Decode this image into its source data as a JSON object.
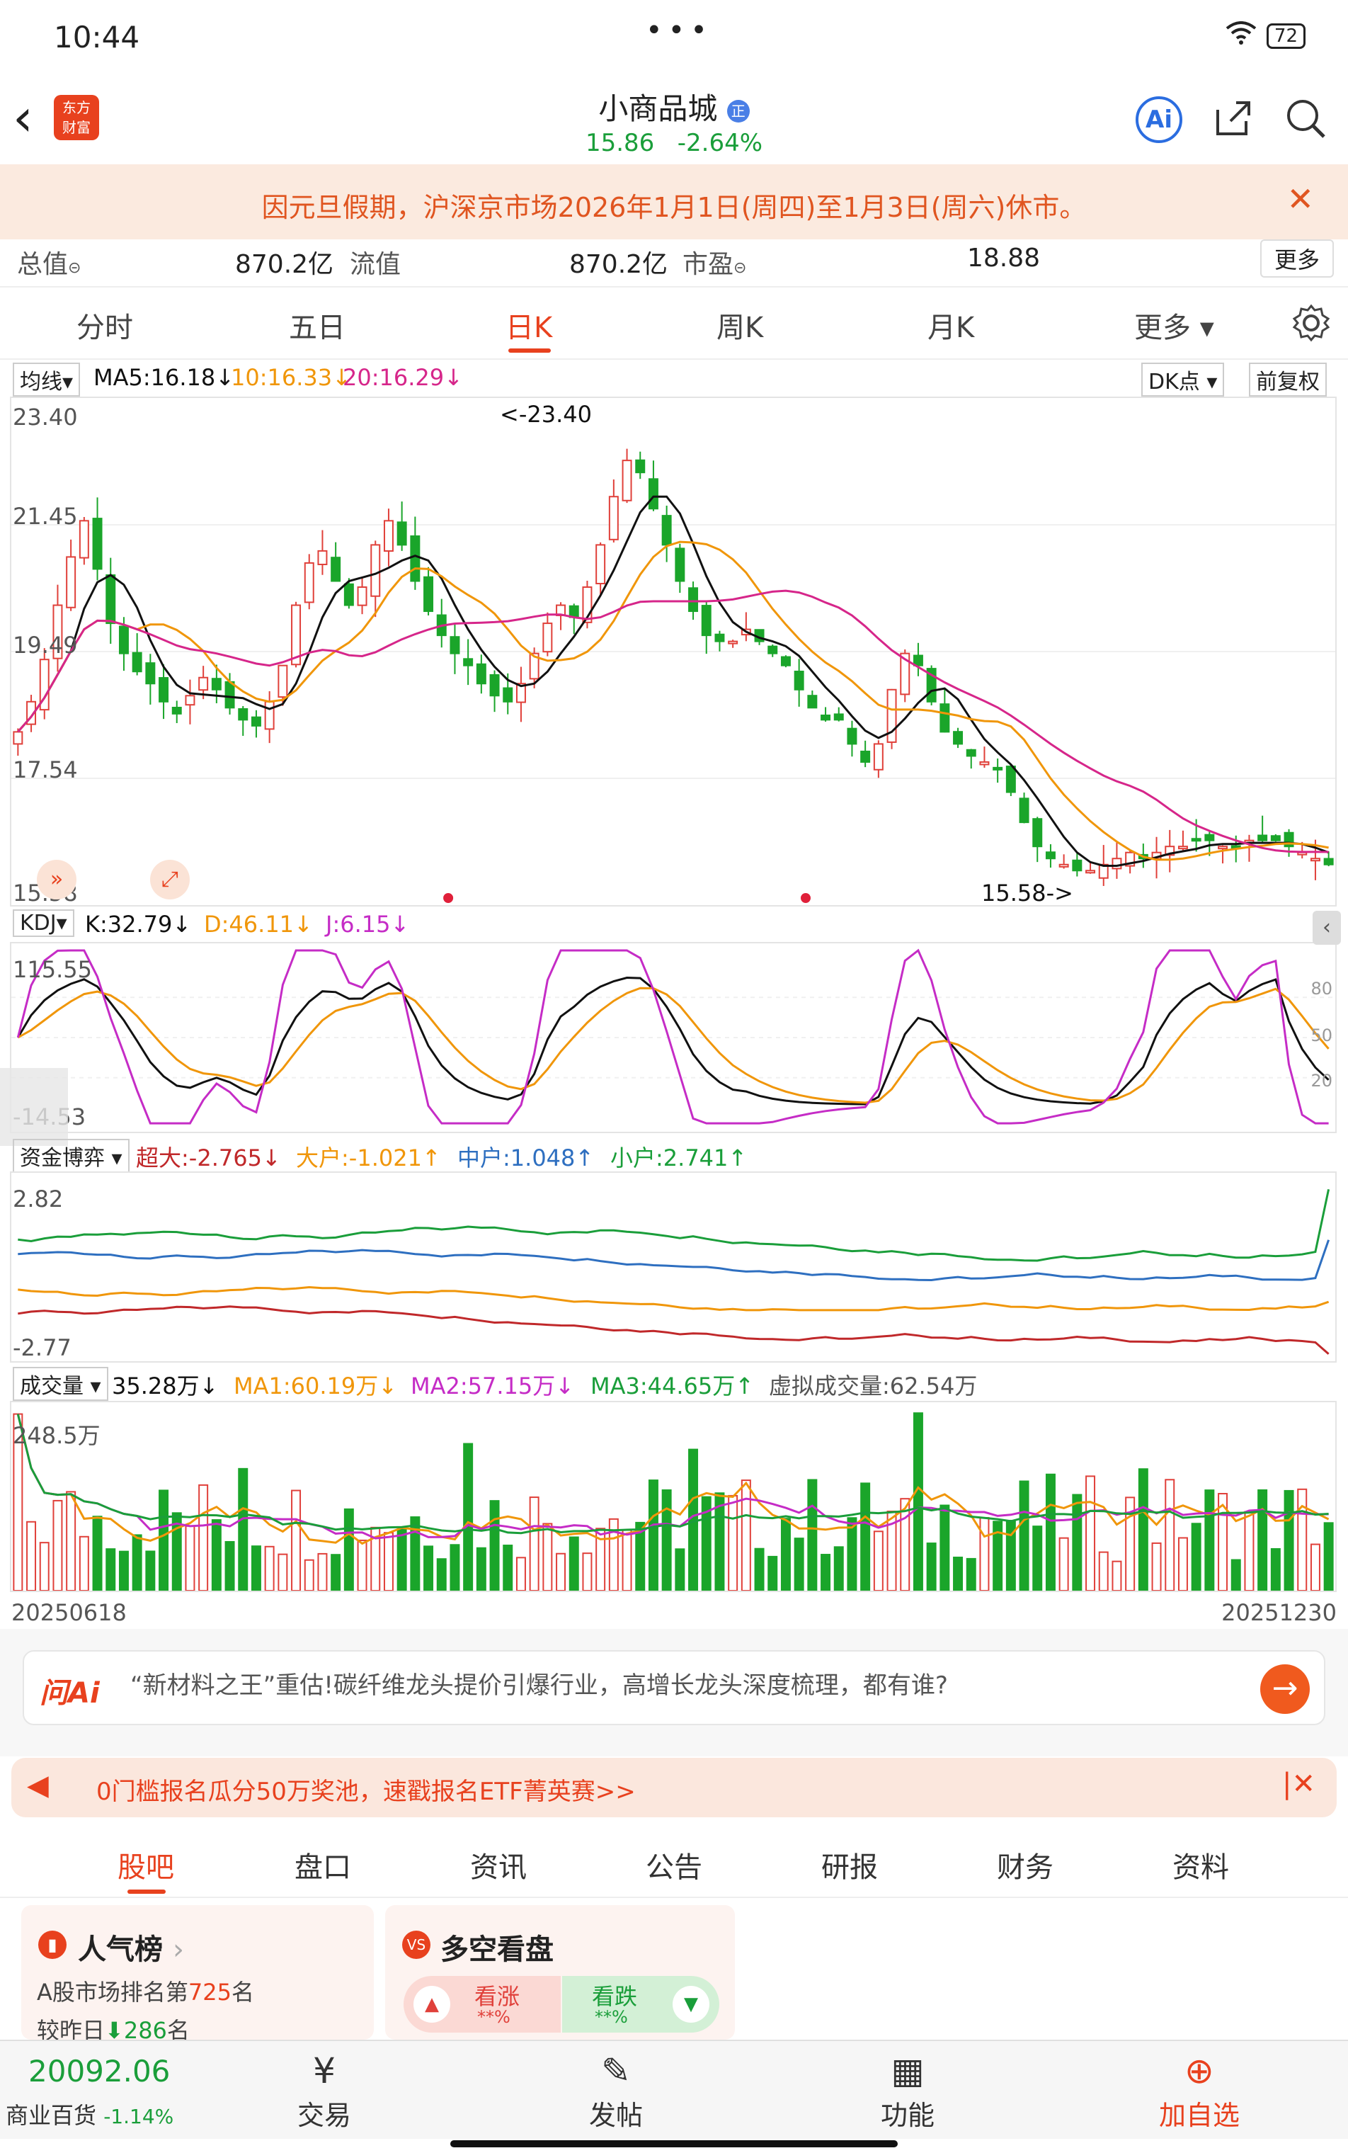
{
  "status": {
    "time": "10:44",
    "battery": "72"
  },
  "header": {
    "stock_name": "小商品城",
    "badge": "正",
    "price": "15.86",
    "change": "-2.64%"
  },
  "notice": {
    "text": "因元旦假期，沪深京市场2026年1月1日(周四)至1月3日(周六)休市。"
  },
  "metrics": {
    "total_label": "总值",
    "total_value": "870.2亿",
    "float_label": "流值",
    "float_value": "870.2亿",
    "pe_label": "市盈",
    "pe_value": "18.88",
    "more": "更多"
  },
  "tabs": [
    "分时",
    "五日",
    "日K",
    "周K",
    "月K",
    "更多"
  ],
  "main_chart": {
    "indicator": "均线",
    "ma5": "MA5:16.18",
    "ma10": "10:16.33",
    "ma20": "20:16.29",
    "dk": "DK点",
    "adjust": "前复权",
    "y_labels": [
      "23.40",
      "21.45",
      "19.49",
      "17.54",
      "15.58"
    ],
    "high_label": "<-23.40",
    "low_label": "15.58->"
  },
  "kdj": {
    "name": "KDJ",
    "k": "K:32.79",
    "d": "D:46.11",
    "j": "J:6.15",
    "y_top": "115.55",
    "y_bottom": "-14.53",
    "right_ticks": [
      "80",
      "50",
      "20"
    ]
  },
  "capital": {
    "name": "资金博弈",
    "super": "超大:-2.765",
    "large": "大户:-1.021",
    "medium": "中户:1.048",
    "small": "小户:2.741",
    "y_top": "2.82",
    "y_bottom": "-2.77"
  },
  "volume": {
    "name": "成交量",
    "value": "35.28万",
    "ma1": "MA1:60.19万",
    "ma2": "MA2:57.15万",
    "ma3": "MA3:44.65万",
    "virtual": "虚拟成交量:62.54万",
    "y_top": "248.5万",
    "date_start": "20250618",
    "date_end": "20251230"
  },
  "chart_data": {
    "type": "candlestick",
    "start_date": "20250618",
    "end_date": "20251230",
    "ylim": [
      15.58,
      23.4
    ],
    "high": 23.4,
    "low": 15.58,
    "close": [
      18.1,
      18.6,
      19.3,
      20.2,
      21.0,
      21.6,
      20.8,
      19.9,
      19.4,
      19.1,
      18.9,
      18.6,
      18.4,
      18.7,
      19.0,
      18.8,
      18.5,
      18.3,
      18.2,
      18.6,
      19.2,
      20.2,
      20.9,
      21.1,
      20.6,
      20.2,
      20.5,
      21.2,
      21.6,
      21.2,
      20.6,
      20.1,
      19.7,
      19.4,
      19.2,
      18.9,
      18.7,
      18.6,
      18.9,
      19.4,
      19.9,
      20.2,
      20.0,
      20.5,
      21.2,
      22.0,
      22.6,
      22.4,
      21.8,
      21.2,
      20.6,
      20.1,
      19.7,
      19.6,
      19.6,
      19.8,
      19.6,
      19.4,
      19.2,
      18.8,
      18.5,
      18.3,
      18.3,
      17.9,
      17.6,
      17.9,
      18.8,
      19.4,
      19.2,
      18.6,
      18.1,
      17.9,
      17.7,
      17.6,
      17.5,
      17.1,
      16.6,
      16.2,
      16.0,
      15.9,
      15.8,
      15.8,
      15.9,
      16.0,
      16.1,
      16.0,
      16.1,
      16.2,
      16.2,
      16.3,
      16.3,
      16.2,
      16.2,
      16.3,
      16.3,
      16.3,
      16.2,
      16.1,
      16.0,
      15.9
    ]
  },
  "promo": {
    "brand": "问Ai",
    "text": "“新材料之王”重估!碳纤维龙头提价引爆行业，高增长龙头深度梳理，都有谁?"
  },
  "promo2": {
    "text": "0门槛报名瓜分50万奖池，速戳报名ETF菁英赛>>"
  },
  "bottom_tabs": [
    "股吧",
    "盘口",
    "资讯",
    "公告",
    "研报",
    "财务",
    "资料"
  ],
  "popularity": {
    "title": "人气榜",
    "rank_prefix": "A股市场排名第",
    "rank": "725",
    "rank_suffix": "名",
    "change_prefix": "较昨日",
    "change": "286",
    "change_suffix": "名"
  },
  "longshort": {
    "title": "多空看盘",
    "up": "看涨",
    "up_pct": "**%",
    "down": "看跌",
    "down_pct": "**%"
  },
  "bottom_bar": {
    "index_value": "20092.06",
    "index_name": "商业百货",
    "index_change": "-1.14%",
    "items": [
      "交易",
      "发帖",
      "功能",
      "加自选"
    ]
  },
  "colors": {
    "up": "#e0403a",
    "down": "#1aa52a",
    "accent": "#e8411e",
    "ma5": "#111111",
    "ma10": "#f0960a",
    "ma20": "#d6268a"
  }
}
